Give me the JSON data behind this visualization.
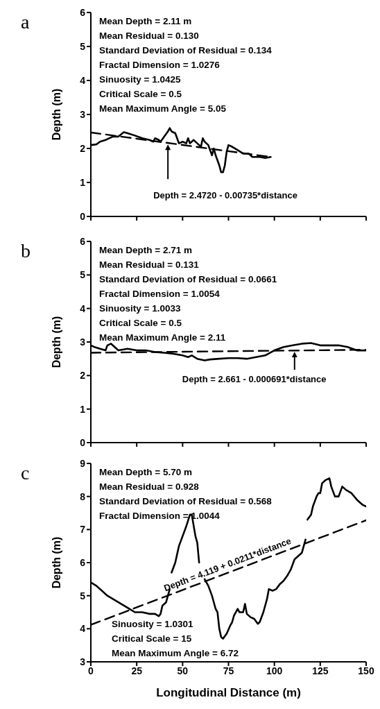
{
  "chart_data": [
    {
      "type": "line",
      "title": "a",
      "ylabel": "Depth (m)",
      "xlim": [
        0,
        150
      ],
      "xticks": [
        0,
        25,
        50,
        75,
        100,
        125,
        150
      ],
      "ylim": [
        0,
        6
      ],
      "yticks": [
        0,
        1,
        2,
        3,
        4,
        5,
        6
      ],
      "tick_labels": "y",
      "marker": "none",
      "line_style": "solid",
      "annotations": [
        "Mean Depth = 2.11 m",
        "Mean Residual = 0.130",
        "Standard Deviation of Residual = 0.134",
        "Fractal Dimension = 1.0276",
        "Sinuosity = 1.0425",
        "Critical Scale = 0.5",
        "Mean Maximum Angle = 5.05",
        {
          "text": "Depth = 2.4720 - 0.00735*distance",
          "x": 42,
          "y": 2.16
        }
      ],
      "series": [
        {
          "color": "#000000",
          "x": [
            0,
            3,
            5,
            8,
            12,
            15,
            18,
            20,
            24,
            28,
            32,
            34,
            35,
            37,
            38,
            40,
            42,
            43,
            44,
            46,
            47,
            48,
            50,
            52,
            53,
            54,
            56,
            58,
            60,
            61,
            62,
            64,
            65,
            66,
            67,
            68,
            70,
            71,
            72,
            73,
            74,
            75,
            77,
            80,
            83,
            86,
            88,
            92,
            95,
            98
          ],
          "values": [
            2.1,
            2.12,
            2.2,
            2.25,
            2.35,
            2.35,
            2.48,
            2.45,
            2.38,
            2.3,
            2.25,
            2.2,
            2.3,
            2.25,
            2.2,
            2.35,
            2.5,
            2.6,
            2.5,
            2.45,
            2.3,
            2.15,
            2.2,
            2.15,
            2.3,
            2.15,
            2.25,
            2.15,
            2.05,
            2.3,
            2.2,
            2.1,
            1.95,
            1.8,
            2.0,
            1.8,
            1.5,
            1.3,
            1.3,
            1.5,
            1.9,
            2.1,
            2.05,
            1.95,
            1.85,
            1.85,
            1.75,
            1.75,
            1.72,
            1.75
          ]
        },
        {
          "type": "line",
          "line_style": "dashed",
          "color": "#000000",
          "x": [
            0,
            98
          ],
          "values": [
            2.47,
            1.75
          ]
        }
      ]
    },
    {
      "type": "line",
      "title": "b",
      "ylabel": "Depth (m)",
      "xlim": [
        0,
        150
      ],
      "xticks": [
        0,
        25,
        50,
        75,
        100,
        125,
        150
      ],
      "ylim": [
        0,
        6
      ],
      "yticks": [
        0,
        1,
        2,
        3,
        4,
        5,
        6
      ],
      "tick_labels": "y",
      "marker": "none",
      "line_style": "solid",
      "annotations": [
        "Mean Depth = 2.71 m",
        "Mean Residual = 0.131",
        "Standard Deviation of Residual = 0.0661",
        "Fractal Dimension = 1.0054",
        "Sinuosity = 1.0033",
        "Critical Scale = 0.5",
        "Mean Maximum Angle = 2.11",
        {
          "text": "Depth = 2.661 - 0.000691*distance",
          "x": 111,
          "y": 2.75
        }
      ],
      "series": [
        {
          "color": "#000000",
          "x": [
            0,
            2,
            5,
            8,
            9,
            11,
            13,
            15,
            20,
            25,
            30,
            35,
            40,
            45,
            50,
            53,
            55,
            58,
            62,
            65,
            70,
            75,
            80,
            85,
            90,
            95,
            100,
            105,
            110,
            115,
            120,
            125,
            130,
            135,
            140,
            145,
            150
          ],
          "values": [
            2.9,
            2.85,
            2.8,
            2.75,
            2.9,
            2.95,
            2.85,
            2.75,
            2.8,
            2.75,
            2.75,
            2.7,
            2.68,
            2.65,
            2.6,
            2.55,
            2.6,
            2.5,
            2.45,
            2.48,
            2.5,
            2.52,
            2.52,
            2.5,
            2.55,
            2.6,
            2.75,
            2.85,
            2.9,
            2.95,
            2.97,
            2.9,
            2.9,
            2.9,
            2.85,
            2.75,
            2.75
          ]
        },
        {
          "type": "line",
          "line_style": "dashed",
          "color": "#000000",
          "x": [
            0,
            150
          ],
          "values": [
            2.68,
            2.77
          ]
        }
      ]
    },
    {
      "type": "line",
      "title": "c",
      "ylabel": "Depth (m)",
      "xlabel": "Longitudinal Distance (m)",
      "xlim": [
        0,
        150
      ],
      "xticks": [
        0,
        25,
        50,
        75,
        100,
        125,
        150
      ],
      "ylim": [
        3,
        9
      ],
      "yticks": [
        3,
        4,
        5,
        6,
        7,
        8,
        9
      ],
      "marker": "none",
      "line_style": "solid",
      "annotations": [
        "Mean Depth = 5.70 m",
        "Mean Residual = 0.928",
        "Standard Deviation of Residual = 0.568",
        "Fractal Dimension = 1.0044",
        "Sinuosity = 1.0301",
        "Critical Scale = 15",
        "Mean Maximum Angle = 6.72",
        {
          "text": "Depth = 4.119 + 0.0211*distance",
          "x": 76,
          "y": 5.72
        }
      ],
      "series": [
        {
          "color": "#000000",
          "x": [
            0,
            3,
            6,
            9,
            12,
            15,
            18,
            21,
            24,
            28,
            32,
            35,
            37,
            38,
            39,
            41,
            42,
            43,
            43.5,
            44,
            46,
            48,
            50,
            52,
            54,
            55,
            57,
            58,
            59,
            60.5,
            62,
            64,
            66,
            68,
            69,
            70,
            71,
            72,
            74,
            76,
            77,
            78,
            80,
            81,
            83,
            84,
            85,
            87,
            89,
            91,
            92,
            94,
            96,
            97,
            99,
            101,
            103,
            105,
            107,
            109,
            111,
            113,
            115,
            117,
            117.5,
            118,
            120,
            121,
            123,
            124,
            125,
            126,
            128,
            130,
            131,
            133,
            135,
            137,
            139,
            142,
            145,
            148,
            150
          ],
          "values": [
            5.4,
            5.3,
            5.15,
            5.0,
            4.9,
            4.8,
            4.7,
            4.6,
            4.5,
            4.5,
            4.45,
            4.45,
            4.38,
            4.45,
            4.7,
            4.8,
            5.0,
            5.2,
            null,
            5.7,
            6.0,
            6.5,
            6.8,
            7.1,
            7.45,
            7.45,
            6.8,
            6.6,
            6.0,
            null,
            5.5,
            5.3,
            5.0,
            4.6,
            4.5,
            4.0,
            3.75,
            3.7,
            3.85,
            4.1,
            4.2,
            4.4,
            4.6,
            4.5,
            4.5,
            4.75,
            4.45,
            4.35,
            4.3,
            4.15,
            4.2,
            4.5,
            4.9,
            5.2,
            5.15,
            5.2,
            5.35,
            5.45,
            5.6,
            5.8,
            6.1,
            6.2,
            6.3,
            6.7,
            null,
            7.3,
            7.45,
            7.7,
            8.0,
            8.1,
            8.1,
            8.4,
            8.5,
            8.55,
            8.3,
            8.0,
            8.0,
            8.3,
            8.2,
            8.1,
            7.9,
            7.75,
            7.7
          ]
        },
        {
          "type": "line",
          "line_style": "dashed",
          "color": "#000000",
          "x": [
            0,
            150
          ],
          "values": [
            4.12,
            7.28
          ]
        }
      ]
    }
  ]
}
